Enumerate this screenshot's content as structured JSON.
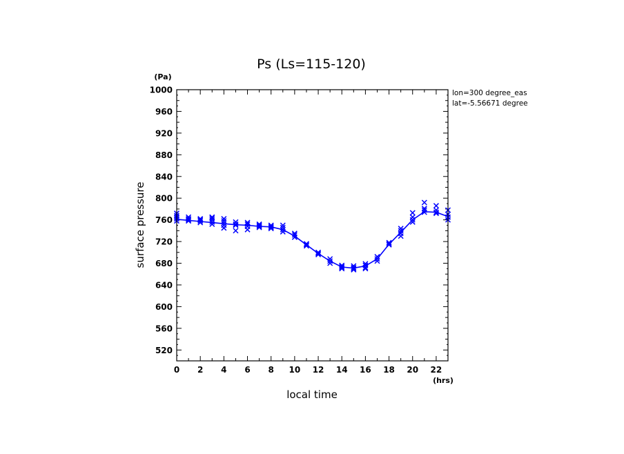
{
  "chart_data": {
    "type": "scatter",
    "title": "Ps (Ls=115-120)",
    "xlabel": "local time",
    "ylabel": "surface pressure",
    "x_unit": "(hrs)",
    "y_unit": "(Pa)",
    "xlim": [
      0,
      23
    ],
    "ylim": [
      500,
      1000
    ],
    "x_ticks": [
      0,
      2,
      4,
      6,
      8,
      10,
      12,
      14,
      16,
      18,
      20,
      22
    ],
    "y_ticks": [
      520,
      560,
      600,
      640,
      680,
      720,
      760,
      800,
      840,
      880,
      920,
      960,
      1000
    ],
    "annotations": [
      "lon=300 degree_eas",
      "lat=-5.56671 degree"
    ],
    "colors": {
      "series": "#0000ff",
      "axes": "#000000"
    },
    "series": [
      {
        "marker": "x",
        "x": [
          0,
          0,
          0,
          0,
          0,
          1,
          1,
          1,
          1,
          2,
          2,
          2,
          2,
          3,
          3,
          3,
          3,
          3,
          4,
          4,
          4,
          4,
          4,
          5,
          5,
          5,
          5,
          6,
          6,
          6,
          6,
          7,
          7,
          7,
          7,
          8,
          8,
          8,
          8,
          9,
          9,
          9,
          9,
          10,
          10,
          10,
          11,
          11,
          11,
          12,
          12,
          12,
          13,
          13,
          13,
          14,
          14,
          14,
          14,
          15,
          15,
          15,
          15,
          16,
          16,
          16,
          16,
          17,
          17,
          17,
          18,
          18,
          18,
          19,
          19,
          19,
          19,
          20,
          20,
          20,
          20,
          21,
          21,
          21,
          21,
          22,
          22,
          22,
          22,
          23,
          23,
          23,
          23
        ],
        "y": [
          758,
          762,
          765,
          768,
          772,
          758,
          760,
          762,
          765,
          755,
          758,
          760,
          762,
          752,
          756,
          760,
          763,
          765,
          745,
          750,
          754,
          758,
          762,
          740,
          750,
          752,
          756,
          742,
          748,
          752,
          755,
          746,
          748,
          750,
          752,
          744,
          746,
          748,
          750,
          738,
          742,
          746,
          750,
          728,
          732,
          735,
          712,
          714,
          716,
          696,
          698,
          700,
          680,
          684,
          688,
          670,
          672,
          674,
          676,
          668,
          670,
          672,
          675,
          670,
          672,
          676,
          679,
          684,
          688,
          692,
          714,
          716,
          718,
          730,
          735,
          740,
          744,
          756,
          760,
          765,
          773,
          774,
          778,
          781,
          792,
          772,
          774,
          778,
          786,
          760,
          765,
          770,
          778
        ]
      },
      {
        "line": true,
        "x": [
          0,
          1,
          2,
          3,
          4,
          5,
          6,
          7,
          8,
          9,
          10,
          11,
          12,
          13,
          14,
          15,
          16,
          17,
          18,
          19,
          20,
          21,
          22,
          23
        ],
        "y": [
          761,
          759,
          757,
          755,
          753,
          751,
          750,
          748,
          747,
          742,
          730,
          714,
          698,
          684,
          673,
          671,
          675,
          688,
          715,
          737,
          760,
          775,
          774,
          766
        ]
      }
    ]
  }
}
